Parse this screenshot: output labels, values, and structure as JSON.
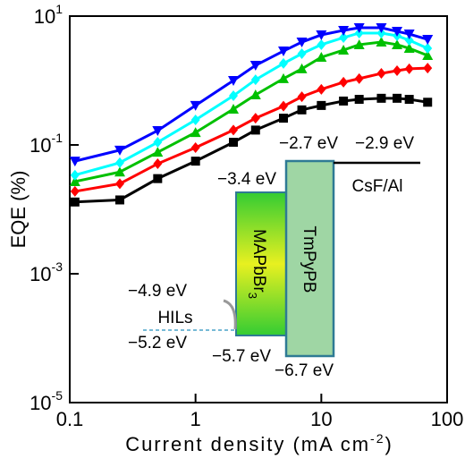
{
  "chart_data": {
    "type": "line",
    "x_label": "Current density (mA cm",
    "x_label_sup": "-2",
    "x_label_end": ")",
    "y_label": "EQE (%)",
    "log_x": true,
    "log_y": true,
    "xlim": [
      0.1,
      100
    ],
    "xticks": [
      0.1,
      1,
      10,
      100
    ],
    "ylim": [
      1e-05,
      10
    ],
    "yticks": [
      {
        "value": 10,
        "label": "10",
        "sup": "1"
      },
      {
        "value": 0.1,
        "label": "10",
        "sup": "-1"
      },
      {
        "value": 0.001,
        "label": "10",
        "sup": "-3"
      },
      {
        "value": 1e-05,
        "label": "10",
        "sup": "-5"
      }
    ],
    "x": [
      0.11,
      0.25,
      0.5,
      1,
      2,
      3,
      5,
      7,
      10,
      15,
      20,
      30,
      40,
      50,
      70
    ],
    "series": [
      {
        "color": "#000000",
        "marker": "square",
        "values": [
          0.013,
          0.014,
          0.03,
          0.056,
          0.11,
          0.17,
          0.26,
          0.35,
          0.41,
          0.48,
          0.51,
          0.53,
          0.53,
          0.51,
          0.46
        ]
      },
      {
        "color": "#ff0000",
        "marker": "diamond",
        "values": [
          0.019,
          0.025,
          0.051,
          0.091,
          0.17,
          0.26,
          0.4,
          0.56,
          0.73,
          0.94,
          1.07,
          1.29,
          1.42,
          1.52,
          1.56
        ]
      },
      {
        "color": "#00c000",
        "marker": "triangle-up",
        "values": [
          0.027,
          0.038,
          0.077,
          0.156,
          0.36,
          0.6,
          1.07,
          1.52,
          2.3,
          2.97,
          3.6,
          3.95,
          3.6,
          3.16,
          2.45
        ]
      },
      {
        "color": "#00ffff",
        "marker": "diamond",
        "values": [
          0.034,
          0.053,
          0.11,
          0.245,
          0.58,
          1.03,
          1.84,
          2.61,
          3.6,
          4.64,
          5.45,
          5.45,
          4.95,
          4.22,
          3.16
        ]
      },
      {
        "color": "#0000ff",
        "marker": "triangle-down",
        "values": [
          0.056,
          0.083,
          0.167,
          0.41,
          1.0,
          1.72,
          2.87,
          3.95,
          5.11,
          6.0,
          6.6,
          6.6,
          5.8,
          5.27,
          4.35
        ]
      }
    ]
  },
  "inset": {
    "lumo_tmpypb": "−2.7 eV",
    "workfunction_cathode": "−2.9 eV",
    "lumo_perovskite": "−3.4 eV",
    "cathode": "CsF/Al",
    "perovskite": "MAPbBr",
    "perovskite_sub": "3",
    "etl": "TmPyPB",
    "hil_top": "−4.9 eV",
    "hil": "HILs",
    "hil_bottom": "−5.2 eV",
    "homo_perovskite": "−5.7 eV",
    "homo_tmpypb": "−6.7 eV"
  }
}
